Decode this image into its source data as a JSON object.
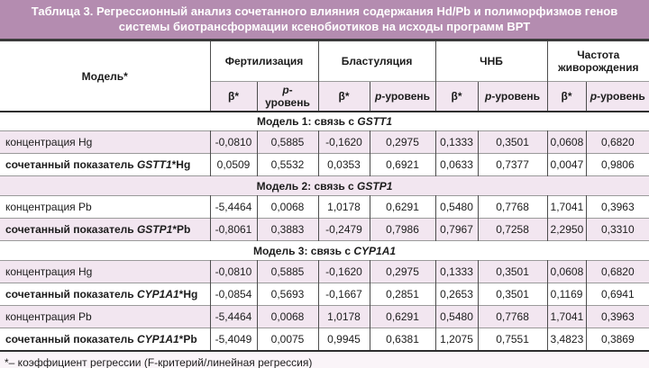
{
  "title": "Таблица 3. Регрессионный анализ сочетанного влияния содержания Hd/Pb и полиморфизмов генов системы биотрансформации ксенобиотиков на исходы программ ВРТ",
  "table": {
    "model_header": "Модель*",
    "groups": [
      "Фертилизация",
      "Бластуляция",
      "ЧНБ",
      "Частота живорождения"
    ],
    "subcols": {
      "beta": "β*",
      "p_italic": "p",
      "p_rest": "-уровень"
    },
    "sections": [
      {
        "heading_prefix": "Модель 1: связь с ",
        "heading_gene": "GSTT1",
        "rows": [
          {
            "label_pre": "концентрация Hg",
            "label_gene": "",
            "label_post": "",
            "bold": false,
            "values": [
              "-0,0810",
              "0,5885",
              "-0,1620",
              "0,2975",
              "0,1333",
              "0,3501",
              "0,0608",
              "0,6820"
            ]
          },
          {
            "label_pre": "сочетанный показатель ",
            "label_gene": "GSTT1",
            "label_post": "*Hg",
            "bold": true,
            "values": [
              "0,0509",
              "0,5532",
              "0,0353",
              "0,6921",
              "0,0633",
              "0,7377",
              "0,0047",
              "0,9806"
            ]
          }
        ]
      },
      {
        "heading_prefix": "Модель 2: связь с ",
        "heading_gene": "GSTP1",
        "rows": [
          {
            "label_pre": "концентрация Pb",
            "label_gene": "",
            "label_post": "",
            "bold": false,
            "values": [
              "-5,4464",
              "0,0068",
              "1,0178",
              "0,6291",
              "0,5480",
              "0,7768",
              "1,7041",
              "0,3963"
            ]
          },
          {
            "label_pre": "сочетанный показатель ",
            "label_gene": "GSTP1",
            "label_post": "*Pb",
            "bold": true,
            "values": [
              "-0,8061",
              "0,3883",
              "-0,2479",
              "0,7986",
              "0,7967",
              "0,7258",
              "2,2950",
              "0,3310"
            ]
          }
        ]
      },
      {
        "heading_prefix": "Модель 3: связь с ",
        "heading_gene": "CYP1A1",
        "rows": [
          {
            "label_pre": "концентрация Hg",
            "label_gene": "",
            "label_post": "",
            "bold": false,
            "values": [
              "-0,0810",
              "0,5885",
              "-0,1620",
              "0,2975",
              "0,1333",
              "0,3501",
              "0,0608",
              "0,6820"
            ]
          },
          {
            "label_pre": "сочетанный показатель ",
            "label_gene": "CYP1A1",
            "label_post": "*Hg",
            "bold": true,
            "values": [
              "-0,0854",
              "0,5693",
              "-0,1667",
              "0,2851",
              "0,2653",
              "0,3501",
              "0,1169",
              "0,6941"
            ]
          },
          {
            "label_pre": "концентрация Pb",
            "label_gene": "",
            "label_post": "",
            "bold": false,
            "values": [
              "-5,4464",
              "0,0068",
              "1,0178",
              "0,6291",
              "0,5480",
              "0,7768",
              "1,7041",
              "0,3963"
            ]
          },
          {
            "label_pre": "сочетанный показатель ",
            "label_gene": "CYP1A1",
            "label_post": "*Pb",
            "bold": true,
            "values": [
              "-5,4049",
              "0,0075",
              "0,9945",
              "0,6381",
              "1,2075",
              "0,7551",
              "3,4823",
              "0,3869"
            ]
          }
        ]
      }
    ]
  },
  "footnote": "*– коэффициент регрессии (F-критерий/линейная регрессия)",
  "colors": {
    "title_bg": "#b48cb0",
    "title_text": "#ffffff",
    "stripe_row": "#f2e6f0",
    "thick_line": "#2e2e2e",
    "thin_line": "#9a9a9a",
    "column_line": "#4d4d4d"
  }
}
